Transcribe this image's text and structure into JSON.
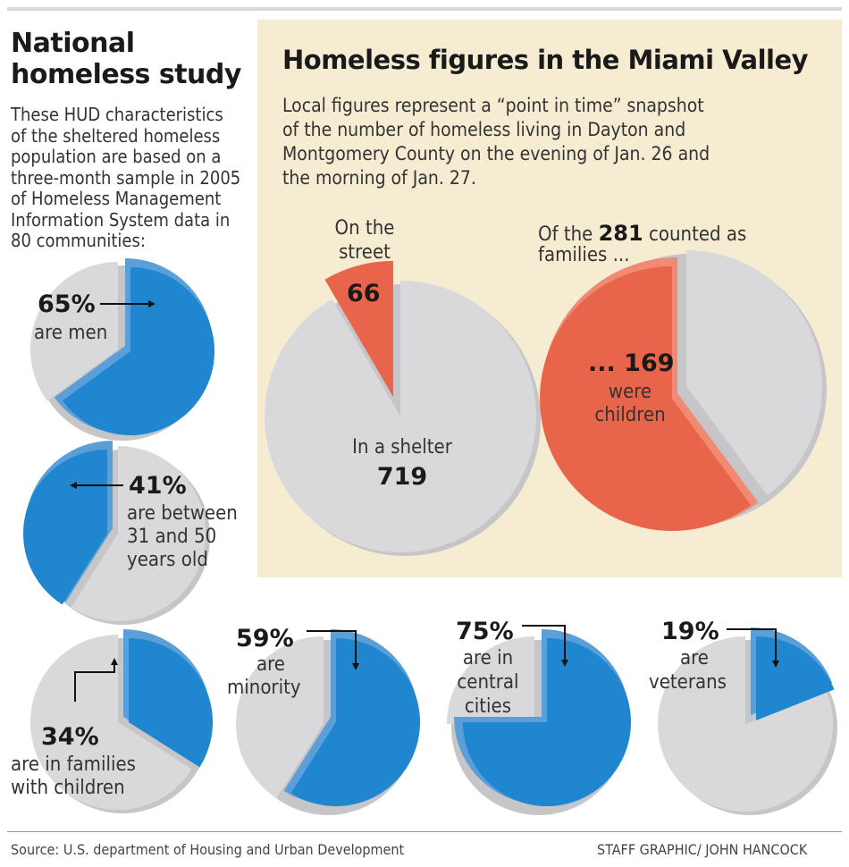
{
  "left_panel": {
    "title_line1": "National",
    "title_line2": "homeless study",
    "intro_lines": [
      "These HUD characteristics",
      "of the sheltered homeless",
      "population are based on a",
      "three-month sample in 2005",
      "of Homeless Management",
      "Information System data in",
      "80 communities:"
    ]
  },
  "right_panel": {
    "title": "Homeless figures in the Miami Valley",
    "intro_lines": [
      "Local figures represent a “point in time” snapshot",
      "of the number of homeless living in Dayton and",
      "Montgomery County on the evening of Jan. 26 and",
      "the morning of Jan. 27."
    ]
  },
  "labels": {
    "men_pct": "65%",
    "men_text": "are men",
    "age_pct": "41%",
    "age_l1": "are between",
    "age_l2": "31 and 50",
    "age_l3": "years old",
    "fam_pct": "34%",
    "fam_l1": "are in families",
    "fam_l2": "with children",
    "min_pct": "59%",
    "min_l1": "are",
    "min_l2": "minority",
    "city_pct": "75%",
    "city_l1": "are in",
    "city_l2": "central",
    "city_l3": "cities",
    "vet_pct": "19%",
    "vet_l1": "are",
    "vet_l2": "veterans",
    "street_l1": "On the",
    "street_l2": "street",
    "street_val": "66",
    "shelter_l1": "In a shelter",
    "shelter_val": "719",
    "fam_count_pre": "Of the ",
    "fam_count_num": "281",
    "fam_count_post": " counted as",
    "fam_count_l2": "families ...",
    "kids_l1": "... 169",
    "kids_l2": "were",
    "kids_l3": "children"
  },
  "footer": {
    "source": "Source: U.S. department of Housing and Urban Development",
    "credit": "STAFF GRAPHIC/ JOHN HANCOCK"
  },
  "colors": {
    "blue": "#1f86cf",
    "blue_rim": "#5a9fd8",
    "gray": "#d9d9db",
    "gray_shadow": "#c6c6c8",
    "red": "#e8654b",
    "red_rim": "#f08a73",
    "panel": "#f5ecd2"
  },
  "chart_data": [
    {
      "type": "pie",
      "id": "men",
      "title": "",
      "categories": [
        "are men",
        "other"
      ],
      "values": [
        65,
        35
      ],
      "highlight": "are men",
      "unit": "%"
    },
    {
      "type": "pie",
      "id": "age",
      "title": "",
      "categories": [
        "are between 31 and 50 years old",
        "other"
      ],
      "values": [
        41,
        59
      ],
      "highlight": "are between 31 and 50 years old",
      "unit": "%"
    },
    {
      "type": "pie",
      "id": "families",
      "title": "",
      "categories": [
        "are in families with children",
        "other"
      ],
      "values": [
        34,
        66
      ],
      "highlight": "are in families with children",
      "unit": "%"
    },
    {
      "type": "pie",
      "id": "minority",
      "title": "",
      "categories": [
        "are minority",
        "other"
      ],
      "values": [
        59,
        41
      ],
      "highlight": "are minority",
      "unit": "%"
    },
    {
      "type": "pie",
      "id": "cities",
      "title": "",
      "categories": [
        "are in central cities",
        "other"
      ],
      "values": [
        75,
        25
      ],
      "highlight": "are in central cities",
      "unit": "%"
    },
    {
      "type": "pie",
      "id": "veterans",
      "title": "",
      "categories": [
        "are veterans",
        "other"
      ],
      "values": [
        19,
        81
      ],
      "highlight": "are veterans",
      "unit": "%"
    },
    {
      "type": "pie",
      "id": "street_shelter",
      "title": "",
      "categories": [
        "On the street",
        "In a shelter"
      ],
      "values": [
        66,
        719
      ],
      "highlight": "On the street"
    },
    {
      "type": "pie",
      "id": "families_children",
      "title": "",
      "categories": [
        "were children",
        "other"
      ],
      "values": [
        169,
        112
      ],
      "highlight": "were children",
      "total": 281
    }
  ]
}
